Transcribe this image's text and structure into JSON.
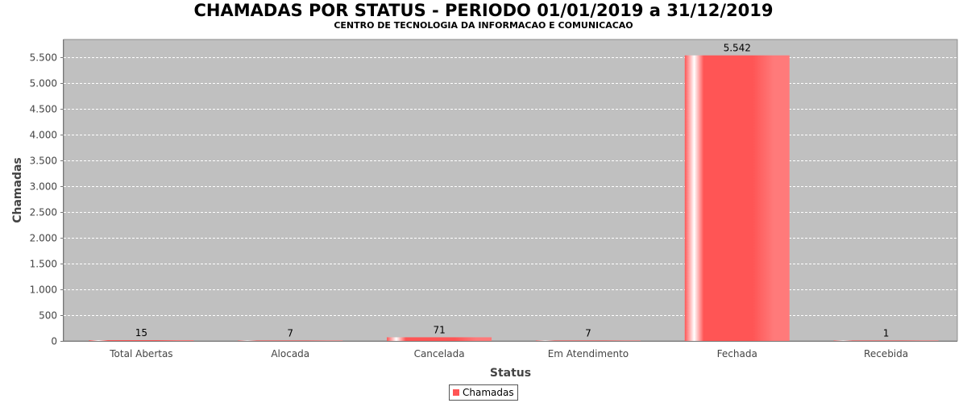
{
  "chart_data": {
    "type": "bar",
    "title": "CHAMADAS POR STATUS - PERIODO 01/01/2019 a 31/12/2019",
    "subtitle": "CENTRO DE TECNOLOGIA DA INFORMACAO E COMUNICACAO",
    "xlabel": "Status",
    "ylabel": "Chamadas",
    "categories": [
      "Total Abertas",
      "Alocada",
      "Cancelada",
      "Em Atendimento",
      "Fechada",
      "Recebida"
    ],
    "series": [
      {
        "name": "Chamadas",
        "values": [
          15,
          7,
          71,
          7,
          5542,
          1
        ],
        "labels": [
          "15",
          "7",
          "71",
          "7",
          "5.542",
          "1"
        ],
        "color": "#ff5555"
      }
    ],
    "ylim": [
      0,
      5850
    ],
    "yticks": [
      0,
      500,
      1000,
      1500,
      2000,
      2500,
      3000,
      3500,
      4000,
      4500,
      5000,
      5500
    ],
    "ytick_labels": [
      "0",
      "500",
      "1.000",
      "1.500",
      "2.000",
      "2.500",
      "3.000",
      "3.500",
      "4.000",
      "4.500",
      "5.000",
      "5.500"
    ],
    "grid": true,
    "legend_position": "bottom-center",
    "plot_background": "#c0c0c0"
  }
}
